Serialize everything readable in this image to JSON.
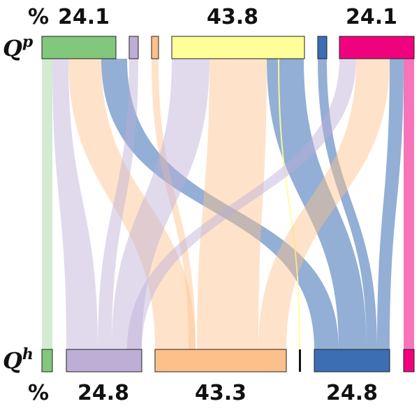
{
  "diagram": {
    "type": "sankey",
    "top_row": {
      "symbol": "Q",
      "superscript": "p",
      "percent_sign": "%",
      "values": [
        "24.1",
        "43.8",
        "24.1"
      ]
    },
    "bottom_row": {
      "symbol": "Q",
      "superscript": "h",
      "percent_sign": "%",
      "values": [
        "24.8",
        "43.3",
        "24.8"
      ]
    },
    "colors": {
      "green": "#82c77c",
      "lavender": "#bdaed6",
      "peach": "#fdc08a",
      "yellow": "#ffff99",
      "blue": "#3b6eb2",
      "magenta": "#f0027f",
      "black": "#111111"
    }
  }
}
